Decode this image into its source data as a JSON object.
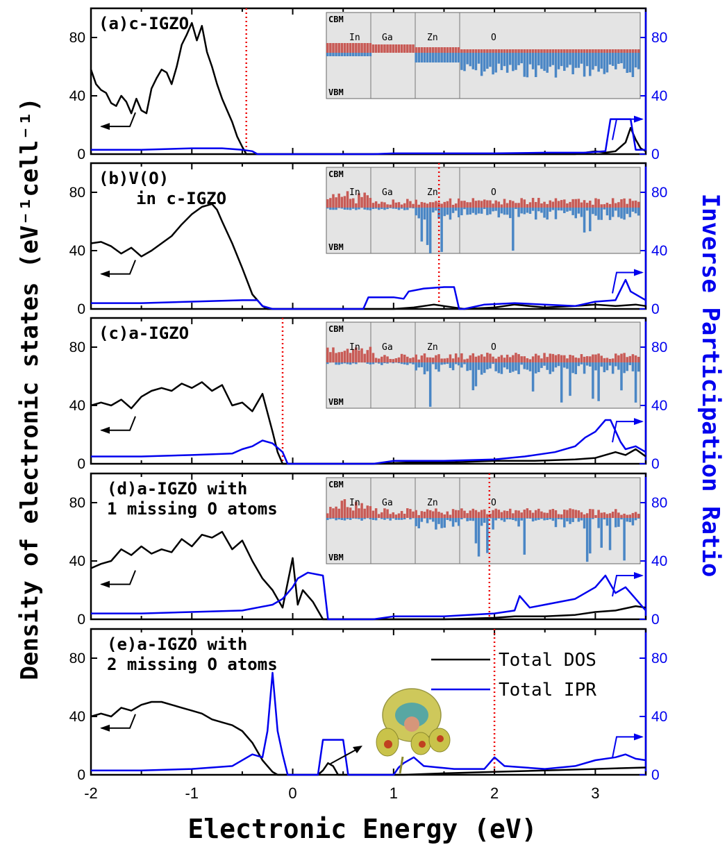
{
  "axes": {
    "x_label": "Electronic Energy (eV)",
    "y_left_label": "Density of electronic states (eV⁻¹cell⁻¹)",
    "y_right_label": "Inverse Participation Ratio",
    "x_ticks": [
      "-2",
      "-1",
      "0",
      "1",
      "2",
      "3"
    ],
    "y_left_ticks": [
      "0",
      "40",
      "80"
    ],
    "y_right_ticks": [
      "0",
      "40",
      "80"
    ]
  },
  "legend": {
    "dos": "Total DOS",
    "ipr": "Total IPR"
  },
  "inset_labels": {
    "cbm": "CBM",
    "vbm": "VBM",
    "groups": [
      "In",
      "Ga",
      "Zn",
      "O"
    ]
  },
  "colors": {
    "dos": "#000000",
    "ipr": "#0000ee",
    "fermi": "#ee0000",
    "bar_up": "#c85a55",
    "bar_down": "#4a86c5",
    "inset_bg": "#e4e4e4"
  },
  "chart_data": [
    {
      "type": "line",
      "panel": "a",
      "label_lines": [
        "(a)c-IGZO"
      ],
      "xlim": [
        -2,
        3.5
      ],
      "ylim_left": [
        0,
        100
      ],
      "ylim_right": [
        0,
        100
      ],
      "fermi_x": -0.46,
      "series": [
        {
          "name": "Total DOS",
          "axis": "left",
          "x": [
            -2,
            -1.95,
            -1.9,
            -1.85,
            -1.8,
            -1.75,
            -1.7,
            -1.65,
            -1.6,
            -1.55,
            -1.5,
            -1.45,
            -1.4,
            -1.35,
            -1.3,
            -1.25,
            -1.2,
            -1.15,
            -1.1,
            -1.05,
            -1,
            -0.95,
            -0.9,
            -0.85,
            -0.8,
            -0.75,
            -0.7,
            -0.65,
            -0.6,
            -0.55,
            -0.5,
            -0.46,
            2.8,
            2.9,
            3.0,
            3.1,
            3.2,
            3.3,
            3.35,
            3.4,
            3.45,
            3.5
          ],
          "y": [
            58,
            48,
            44,
            42,
            35,
            33,
            40,
            36,
            28,
            38,
            30,
            28,
            45,
            52,
            58,
            56,
            48,
            60,
            75,
            82,
            90,
            78,
            88,
            70,
            60,
            48,
            38,
            30,
            22,
            12,
            5,
            0,
            0,
            1,
            2,
            1,
            2,
            8,
            18,
            10,
            4,
            2
          ]
        },
        {
          "name": "Total IPR",
          "axis": "right",
          "x": [
            -2,
            -1.5,
            -1,
            -0.7,
            -0.5,
            -0.4,
            -0.35,
            -0.3,
            0.8,
            1.0,
            1.5,
            2.0,
            2.5,
            2.9,
            3.1,
            3.15,
            3.35,
            3.4,
            3.5
          ],
          "y": [
            3,
            3,
            4,
            4,
            3,
            2,
            0,
            0,
            0,
            0.5,
            0.5,
            0.5,
            1,
            1,
            2,
            24,
            24,
            3,
            3
          ]
        }
      ],
      "inset": {
        "has_fermi": false
      }
    },
    {
      "type": "line",
      "panel": "b",
      "label_lines": [
        "(b)V(O)",
        "in c-IGZO"
      ],
      "xlim": [
        -2,
        3.5
      ],
      "ylim_left": [
        0,
        100
      ],
      "ylim_right": [
        0,
        100
      ],
      "fermi_x": 1.45,
      "series": [
        {
          "name": "Total DOS",
          "axis": "left",
          "x": [
            -2,
            -1.9,
            -1.8,
            -1.7,
            -1.6,
            -1.5,
            -1.4,
            -1.3,
            -1.2,
            -1.1,
            -1.0,
            -0.9,
            -0.8,
            -0.75,
            -0.7,
            -0.6,
            -0.5,
            -0.4,
            -0.3,
            -0.25,
            0.4,
            1.0,
            1.2,
            1.4,
            1.5,
            1.7,
            2.0,
            2.2,
            2.5,
            2.8,
            3.0,
            3.2,
            3.4,
            3.5
          ],
          "y": [
            45,
            46,
            43,
            38,
            42,
            36,
            40,
            45,
            50,
            58,
            65,
            70,
            72,
            68,
            60,
            45,
            28,
            10,
            2,
            0,
            0,
            0,
            1,
            3,
            2,
            0,
            1,
            3,
            1,
            2,
            3,
            2,
            3,
            2
          ]
        },
        {
          "name": "Total IPR",
          "axis": "right",
          "x": [
            -2,
            -1.5,
            -1,
            -0.5,
            -0.35,
            -0.3,
            -0.2,
            0.7,
            0.75,
            1.0,
            1.1,
            1.15,
            1.3,
            1.5,
            1.6,
            1.65,
            1.7,
            1.9,
            2.2,
            2.5,
            2.8,
            3.0,
            3.2,
            3.3,
            3.35,
            3.5
          ],
          "y": [
            4,
            4,
            5,
            6,
            6,
            2,
            0,
            0,
            8,
            8,
            7,
            12,
            14,
            15,
            15,
            0,
            0,
            3,
            4,
            3,
            2,
            5,
            6,
            20,
            12,
            6
          ]
        }
      ],
      "inset": {
        "has_fermi": true
      }
    },
    {
      "type": "line",
      "panel": "c",
      "label_lines": [
        "(c)a-IGZO"
      ],
      "xlim": [
        -2,
        3.5
      ],
      "ylim_left": [
        0,
        100
      ],
      "ylim_right": [
        0,
        100
      ],
      "fermi_x": -0.1,
      "series": [
        {
          "name": "Total DOS",
          "axis": "left",
          "x": [
            -2,
            -1.9,
            -1.8,
            -1.7,
            -1.6,
            -1.5,
            -1.4,
            -1.3,
            -1.2,
            -1.1,
            -1.0,
            -0.9,
            -0.8,
            -0.7,
            -0.6,
            -0.5,
            -0.4,
            -0.3,
            -0.2,
            -0.15,
            -0.1,
            0.8,
            1.2,
            1.6,
            2.0,
            2.4,
            2.8,
            3.0,
            3.2,
            3.3,
            3.4,
            3.5
          ],
          "y": [
            40,
            42,
            40,
            44,
            38,
            46,
            50,
            52,
            50,
            55,
            52,
            56,
            50,
            54,
            40,
            42,
            36,
            48,
            22,
            8,
            0,
            0,
            1,
            1,
            2,
            2,
            3,
            4,
            8,
            6,
            10,
            5
          ]
        },
        {
          "name": "Total IPR",
          "axis": "right",
          "x": [
            -2,
            -1.5,
            -1,
            -0.6,
            -0.5,
            -0.4,
            -0.3,
            -0.2,
            -0.1,
            -0.05,
            0.8,
            1.0,
            1.5,
            2.0,
            2.3,
            2.6,
            2.8,
            2.9,
            3.0,
            3.1,
            3.15,
            3.25,
            3.3,
            3.4,
            3.5
          ],
          "y": [
            5,
            5,
            6,
            7,
            10,
            12,
            16,
            14,
            8,
            0,
            0,
            2,
            2,
            3,
            5,
            8,
            12,
            18,
            22,
            30,
            30,
            15,
            10,
            12,
            8
          ]
        }
      ],
      "inset": {
        "has_fermi": false
      }
    },
    {
      "type": "line",
      "panel": "d",
      "label_lines": [
        "(d)a-IGZO with",
        "1 missing O atoms"
      ],
      "xlim": [
        -2,
        3.5
      ],
      "ylim_left": [
        0,
        100
      ],
      "ylim_right": [
        0,
        100
      ],
      "fermi_x": 1.95,
      "series": [
        {
          "name": "Total DOS",
          "axis": "left",
          "x": [
            -2,
            -1.9,
            -1.8,
            -1.7,
            -1.6,
            -1.5,
            -1.4,
            -1.3,
            -1.2,
            -1.1,
            -1.0,
            -0.9,
            -0.8,
            -0.7,
            -0.6,
            -0.5,
            -0.4,
            -0.3,
            -0.2,
            -0.1,
            0.0,
            0.05,
            0.1,
            0.2,
            0.3,
            0.35,
            1.0,
            1.5,
            2.0,
            2.2,
            2.5,
            2.8,
            3.0,
            3.2,
            3.4,
            3.5
          ],
          "y": [
            35,
            38,
            40,
            48,
            44,
            50,
            45,
            48,
            46,
            55,
            50,
            58,
            56,
            60,
            48,
            54,
            40,
            28,
            20,
            8,
            42,
            10,
            20,
            12,
            0,
            0,
            0,
            0,
            1,
            2,
            2,
            3,
            5,
            6,
            9,
            8
          ]
        },
        {
          "name": "Total IPR",
          "axis": "right",
          "x": [
            -2,
            -1.5,
            -1,
            -0.5,
            -0.2,
            -0.1,
            0,
            0.05,
            0.1,
            0.15,
            0.3,
            0.35,
            0.8,
            1.0,
            1.5,
            2.0,
            2.2,
            2.25,
            2.35,
            2.5,
            2.8,
            3.0,
            3.1,
            3.2,
            3.3,
            3.4,
            3.5
          ],
          "y": [
            4,
            4,
            5,
            6,
            10,
            14,
            22,
            28,
            30,
            32,
            30,
            0,
            0,
            2,
            2,
            4,
            6,
            16,
            8,
            10,
            14,
            22,
            30,
            18,
            22,
            14,
            6
          ]
        }
      ],
      "inset": {
        "has_fermi": true
      }
    },
    {
      "type": "line",
      "panel": "e",
      "label_lines": [
        "(e)a-IGZO with",
        "2 missing O atoms"
      ],
      "xlim": [
        -2,
        3.5
      ],
      "ylim_left": [
        0,
        100
      ],
      "ylim_right": [
        0,
        100
      ],
      "fermi_x": 2.0,
      "series": [
        {
          "name": "Total DOS",
          "axis": "left",
          "x": [
            -2,
            -1.9,
            -1.8,
            -1.7,
            -1.6,
            -1.5,
            -1.4,
            -1.3,
            -1.2,
            -1.1,
            -1.0,
            -0.9,
            -0.8,
            -0.7,
            -0.6,
            -0.5,
            -0.4,
            -0.3,
            -0.25,
            -0.2,
            -0.15,
            0.25,
            0.3,
            0.35,
            0.4,
            0.45,
            1.1,
            1.5,
            2.0,
            2.5,
            3.0,
            3.5
          ],
          "y": [
            40,
            42,
            40,
            46,
            44,
            48,
            50,
            50,
            48,
            46,
            44,
            42,
            38,
            36,
            34,
            30,
            22,
            10,
            6,
            2,
            0,
            0,
            3,
            8,
            6,
            0,
            0,
            1,
            2,
            3,
            4,
            5
          ]
        },
        {
          "name": "Total IPR",
          "axis": "right",
          "x": [
            -2,
            -1.5,
            -1,
            -0.6,
            -0.4,
            -0.3,
            -0.25,
            -0.2,
            -0.15,
            -0.1,
            -0.05,
            0.25,
            0.3,
            0.5,
            0.55,
            1.0,
            1.05,
            1.1,
            1.2,
            1.3,
            1.6,
            1.9,
            2.0,
            2.1,
            2.5,
            2.8,
            3.0,
            3.2,
            3.3,
            3.4,
            3.5
          ],
          "y": [
            3,
            3,
            4,
            6,
            14,
            12,
            30,
            70,
            30,
            14,
            0,
            0,
            24,
            24,
            0,
            0,
            5,
            8,
            12,
            6,
            4,
            4,
            12,
            6,
            4,
            6,
            10,
            12,
            14,
            11,
            10
          ]
        }
      ],
      "inset": null
    }
  ]
}
